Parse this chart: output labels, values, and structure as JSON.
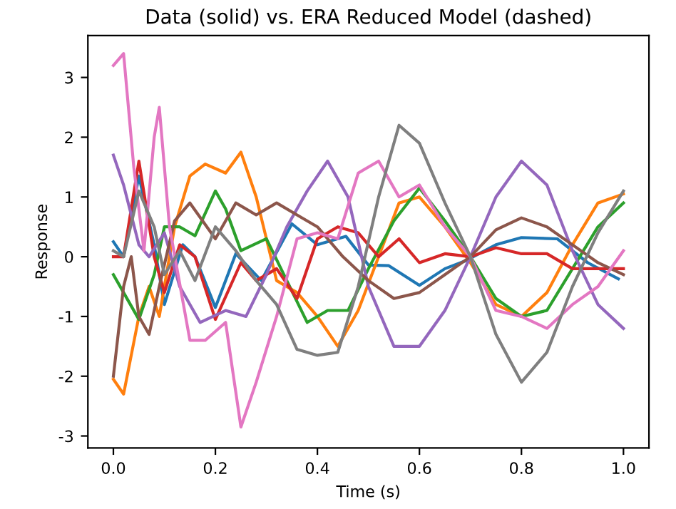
{
  "chart_data": {
    "type": "line",
    "title": "Data (solid) vs. ERA Reduced Model (dashed)",
    "xlabel": "Time (s)",
    "ylabel": "Response",
    "xlim": [
      -0.05,
      1.05
    ],
    "ylim": [
      -3.2,
      3.7
    ],
    "xticks": [
      {
        "value": 0,
        "label": "0.0"
      },
      {
        "value": 0.2,
        "label": "0.2"
      },
      {
        "value": 0.4,
        "label": "0.4"
      },
      {
        "value": 0.6,
        "label": "0.6"
      },
      {
        "value": 0.8,
        "label": "0.8"
      },
      {
        "value": 1,
        "label": "1.0"
      }
    ],
    "yticks": [
      -3,
      -2,
      -1,
      0,
      1,
      2,
      3
    ],
    "grid": false,
    "line_style": "solid",
    "marker": "none",
    "series": [
      {
        "color": "#1f77b4",
        "x": [
          0,
          0.02,
          0.05,
          0.08,
          0.1,
          0.136,
          0.16,
          0.2,
          0.24,
          0.29,
          0.35,
          0.4,
          0.456,
          0.5,
          0.54,
          0.6,
          0.65,
          0.69,
          0.75,
          0.8,
          0.87,
          0.93,
          0.99
        ],
        "values": [
          0.25,
          0.0,
          1.35,
          0.2,
          -0.8,
          0.2,
          0.0,
          -0.85,
          0.05,
          -0.4,
          0.55,
          0.2,
          0.34,
          -0.14,
          -0.15,
          -0.48,
          -0.2,
          -0.07,
          0.2,
          0.32,
          0.3,
          -0.1,
          -0.37
        ]
      },
      {
        "color": "#ff7f0e",
        "x": [
          0,
          0.02,
          0.05,
          0.07,
          0.09,
          0.12,
          0.15,
          0.18,
          0.22,
          0.25,
          0.28,
          0.32,
          0.36,
          0.4,
          0.44,
          0.48,
          0.52,
          0.56,
          0.6,
          0.65,
          0.7,
          0.75,
          0.8,
          0.85,
          0.9,
          0.95,
          1.0
        ],
        "values": [
          -2.05,
          -2.3,
          -1.0,
          -0.5,
          -1.0,
          0.5,
          1.35,
          1.55,
          1.4,
          1.75,
          1.0,
          -0.4,
          -0.6,
          -1.0,
          -1.5,
          -0.9,
          0.0,
          0.9,
          1.0,
          0.5,
          -0.1,
          -0.8,
          -1.0,
          -0.6,
          0.2,
          0.9,
          1.05
        ]
      },
      {
        "color": "#2ca02c",
        "x": [
          0,
          0.02,
          0.05,
          0.08,
          0.1,
          0.13,
          0.16,
          0.2,
          0.22,
          0.25,
          0.3,
          0.34,
          0.38,
          0.42,
          0.46,
          0.5,
          0.55,
          0.6,
          0.65,
          0.7,
          0.75,
          0.8,
          0.85,
          0.9,
          0.95,
          1.0
        ],
        "values": [
          -0.3,
          -0.6,
          -1.05,
          -0.3,
          0.5,
          0.5,
          0.35,
          1.1,
          0.8,
          0.1,
          0.3,
          -0.4,
          -1.1,
          -0.9,
          -0.9,
          -0.2,
          0.6,
          1.15,
          0.6,
          0.0,
          -0.7,
          -1.0,
          -0.9,
          -0.2,
          0.5,
          0.9
        ]
      },
      {
        "color": "#d62728",
        "x": [
          0,
          0.02,
          0.05,
          0.08,
          0.1,
          0.13,
          0.16,
          0.2,
          0.25,
          0.28,
          0.32,
          0.36,
          0.4,
          0.44,
          0.48,
          0.52,
          0.56,
          0.6,
          0.65,
          0.7,
          0.75,
          0.8,
          0.85,
          0.9,
          1.0
        ],
        "values": [
          0.0,
          0.0,
          1.6,
          0.0,
          -0.6,
          0.2,
          0.0,
          -1.05,
          -0.1,
          -0.4,
          -0.2,
          -0.7,
          0.3,
          0.5,
          0.4,
          0.0,
          0.3,
          -0.1,
          0.05,
          0.0,
          0.15,
          0.05,
          0.05,
          -0.2,
          -0.2
        ]
      },
      {
        "color": "#9467bd",
        "x": [
          0,
          0.02,
          0.05,
          0.07,
          0.1,
          0.13,
          0.17,
          0.22,
          0.26,
          0.3,
          0.34,
          0.38,
          0.42,
          0.46,
          0.5,
          0.55,
          0.6,
          0.65,
          0.7,
          0.75,
          0.8,
          0.85,
          0.9,
          0.95,
          1.0
        ],
        "values": [
          1.7,
          1.2,
          0.2,
          0.0,
          0.4,
          -0.5,
          -1.1,
          -0.9,
          -1.0,
          -0.3,
          0.5,
          1.1,
          1.6,
          1.0,
          -0.5,
          -1.5,
          -1.5,
          -0.9,
          0.0,
          1.0,
          1.6,
          1.2,
          0.1,
          -0.8,
          -1.2
        ]
      },
      {
        "color": "#8c564b",
        "x": [
          0,
          0.02,
          0.035,
          0.05,
          0.07,
          0.09,
          0.12,
          0.15,
          0.2,
          0.24,
          0.28,
          0.32,
          0.36,
          0.4,
          0.45,
          0.5,
          0.55,
          0.6,
          0.65,
          0.7,
          0.75,
          0.8,
          0.85,
          0.9,
          0.95,
          1.0
        ],
        "values": [
          -2.0,
          -0.5,
          0.0,
          -1.0,
          -1.3,
          -0.5,
          0.6,
          0.9,
          0.3,
          0.9,
          0.7,
          0.9,
          0.7,
          0.5,
          0.0,
          -0.4,
          -0.7,
          -0.6,
          -0.3,
          0.0,
          0.45,
          0.65,
          0.5,
          0.2,
          -0.1,
          -0.3
        ]
      },
      {
        "color": "#e377c2",
        "x": [
          0,
          0.02,
          0.04,
          0.06,
          0.08,
          0.09,
          0.11,
          0.15,
          0.18,
          0.22,
          0.25,
          0.28,
          0.32,
          0.36,
          0.4,
          0.44,
          0.48,
          0.52,
          0.56,
          0.6,
          0.65,
          0.7,
          0.75,
          0.8,
          0.85,
          0.9,
          0.95,
          1.0
        ],
        "values": [
          3.2,
          3.4,
          1.5,
          0.1,
          2.0,
          2.5,
          0.5,
          -1.4,
          -1.4,
          -1.1,
          -2.85,
          -2.1,
          -1.0,
          0.3,
          0.4,
          0.3,
          1.4,
          1.6,
          1.0,
          1.2,
          0.5,
          0.0,
          -0.9,
          -1.0,
          -1.2,
          -0.8,
          -0.5,
          0.1
        ]
      },
      {
        "color": "#7f7f7f",
        "x": [
          0,
          0.02,
          0.05,
          0.08,
          0.1,
          0.13,
          0.16,
          0.2,
          0.24,
          0.28,
          0.32,
          0.36,
          0.4,
          0.44,
          0.48,
          0.52,
          0.56,
          0.6,
          0.65,
          0.7,
          0.75,
          0.8,
          0.85,
          0.9,
          0.95,
          1.0
        ],
        "values": [
          0.1,
          0.0,
          1.1,
          0.5,
          -0.3,
          0.1,
          -0.4,
          0.5,
          0.1,
          -0.4,
          -0.8,
          -1.55,
          -1.65,
          -1.6,
          -0.5,
          1.0,
          2.2,
          1.9,
          0.9,
          0.0,
          -1.3,
          -2.1,
          -1.6,
          -0.5,
          0.4,
          1.1
        ]
      }
    ]
  }
}
